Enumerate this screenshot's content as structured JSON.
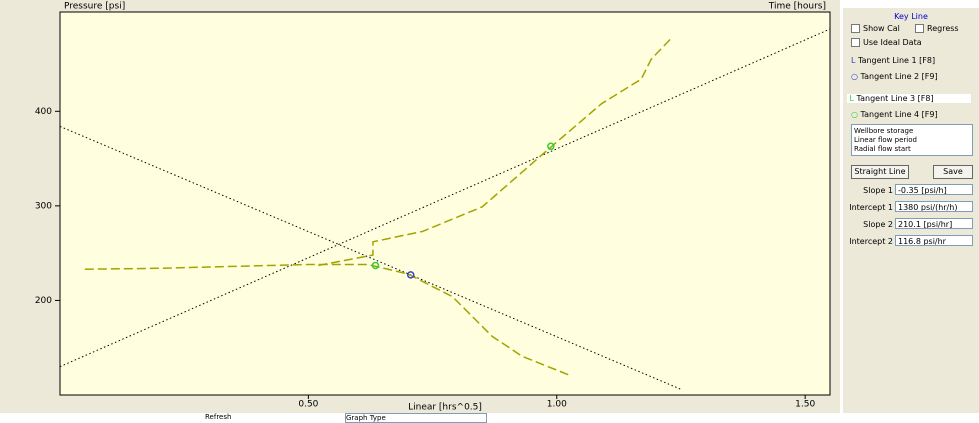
{
  "chart_data": {
    "type": "line",
    "y_label": "Pressure [psi]",
    "top_right_label": "Time [hours]",
    "x_label": "Linear [hrs^0.5]",
    "xlim": [
      0,
      1.55
    ],
    "ylim": [
      100,
      505
    ],
    "xticks": [
      {
        "value": 0.5,
        "label": "0.50"
      },
      {
        "value": 1.0,
        "label": "1.00"
      },
      {
        "value": 1.5,
        "label": "1.50"
      }
    ],
    "yticks": [
      200,
      300,
      400
    ],
    "series": [
      {
        "style": "dotted",
        "color": "#000000",
        "x": [
          0,
          1.55
        ],
        "values": [
          130,
          487
        ]
      },
      {
        "style": "dotted",
        "color": "#000000",
        "x": [
          0,
          1.25
        ],
        "values": [
          384,
          106
        ]
      },
      {
        "style": "dashed",
        "color": "#a3a300",
        "x": [
          0.05,
          0.2,
          0.35,
          0.5,
          0.62,
          0.7,
          0.79,
          0.87,
          0.93,
          1.03
        ],
        "values": [
          233,
          234,
          236,
          238,
          238,
          228,
          204,
          162,
          141,
          120
        ]
      },
      {
        "style": "dashed",
        "color": "#a3a300",
        "x": [
          0.52,
          0.63,
          0.63,
          0.73,
          0.85,
          0.99,
          1.09,
          1.17,
          1.19,
          1.23
        ],
        "values": [
          237,
          248,
          262,
          273,
          299,
          363,
          408,
          434,
          455,
          477
        ]
      }
    ],
    "markers": [
      {
        "color": "#33cc33",
        "x": 0.635,
        "value": 237
      },
      {
        "color": "#3344cc",
        "x": 0.706,
        "value": 227
      },
      {
        "color": "#33cc33",
        "x": 0.988,
        "value": 363
      }
    ]
  },
  "panel": {
    "title": "Key Line",
    "checks": [
      "Show Cal",
      "Regress",
      "Use Ideal Data"
    ],
    "tangents": [
      "Tangent Line 1 [F8]",
      "Tangent Line 2 [F9]",
      "Tangent Line 3 [F8]",
      "Tangent Line 4 [F9]"
    ],
    "notes": [
      "Wellbore storage",
      "Linear flow period",
      "Radial flow start"
    ],
    "buttons": [
      "Straight Line",
      "Save"
    ],
    "fields": [
      {
        "label": "Slope 1",
        "value": "-0.35 [psi/h]"
      },
      {
        "label": "Intercept 1",
        "value": "1380 psi/(hr/h)"
      },
      {
        "label": "Slope 2",
        "value": "210.1 [psi/hr]"
      },
      {
        "label": "Intercept 2",
        "value": "116.8 psi/hr"
      }
    ]
  },
  "footer": {
    "left": "Refresh",
    "right": "Graph Type"
  }
}
